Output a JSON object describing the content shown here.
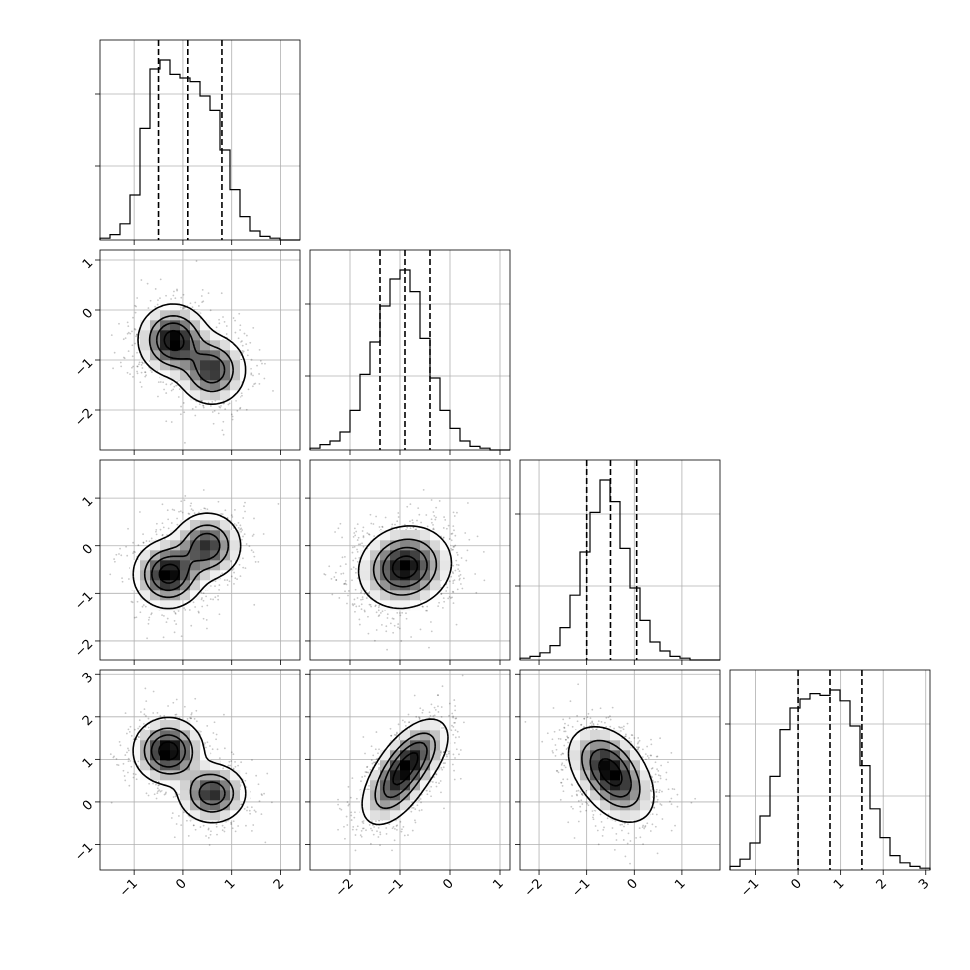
{
  "chart_data": {
    "type": "corner",
    "description_free": true,
    "parameters": 4,
    "ranges": [
      [
        -1.7,
        2.4
      ],
      [
        -2.8,
        1.2
      ],
      [
        -2.4,
        1.8
      ],
      [
        -1.6,
        3.1
      ]
    ],
    "ticks": [
      [
        -1,
        0,
        1,
        2
      ],
      [
        -2,
        -1,
        0,
        1
      ],
      [
        -2,
        -1,
        0,
        1
      ],
      [
        -1,
        0,
        1,
        2,
        3
      ]
    ],
    "tick_labels": [
      [
        "−1",
        "0",
        "1",
        "2"
      ],
      [
        "−2",
        "−1",
        "0",
        "1"
      ],
      [
        "−2",
        "−1",
        "0",
        "1"
      ],
      [
        "−1",
        "0",
        "1",
        "2",
        "3"
      ]
    ],
    "row_tick_labels": [
      null,
      [
        "−2",
        "−1",
        "0",
        "1"
      ],
      [
        "−2",
        "−1",
        "0",
        "1"
      ],
      [
        "−1",
        "0",
        "1",
        "2",
        "3"
      ]
    ],
    "quantiles": [
      [
        -0.5,
        0.1,
        0.8
      ],
      [
        -1.4,
        -0.9,
        -0.4
      ],
      [
        -1.0,
        -0.5,
        0.05
      ],
      [
        0.0,
        0.75,
        1.5
      ]
    ],
    "histograms": [
      {
        "bins": 20,
        "counts": [
          1,
          3,
          9,
          25,
          62,
          95,
          100,
          92,
          90,
          88,
          80,
          72,
          50,
          28,
          13,
          5,
          2,
          1,
          0,
          0
        ]
      },
      {
        "bins": 20,
        "counts": [
          1,
          3,
          5,
          10,
          22,
          42,
          60,
          80,
          95,
          100,
          88,
          62,
          40,
          22,
          12,
          5,
          2,
          1,
          0,
          0
        ]
      },
      {
        "bins": 20,
        "counts": [
          1,
          2,
          4,
          8,
          18,
          36,
          60,
          82,
          100,
          88,
          62,
          40,
          22,
          10,
          5,
          2,
          1,
          0,
          0,
          0
        ]
      },
      {
        "bins": 20,
        "counts": [
          2,
          6,
          15,
          30,
          52,
          78,
          90,
          95,
          98,
          97,
          100,
          94,
          80,
          58,
          34,
          18,
          8,
          4,
          2,
          1
        ]
      }
    ],
    "pairs": [
      {
        "row": 1,
        "col": 0,
        "modes": [
          {
            "mx": -0.2,
            "my": -0.6,
            "sx": 0.35,
            "sy": 0.35,
            "w": 0.55
          },
          {
            "mx": 0.6,
            "my": -1.2,
            "sx": 0.35,
            "sy": 0.35,
            "w": 0.45
          }
        ],
        "rho": 0.0
      },
      {
        "row": 2,
        "col": 0,
        "modes": [
          {
            "mx": -0.3,
            "my": -0.6,
            "sx": 0.35,
            "sy": 0.35,
            "w": 0.55
          },
          {
            "mx": 0.5,
            "my": 0.0,
            "sx": 0.35,
            "sy": 0.35,
            "w": 0.45
          }
        ],
        "rho": 0.0
      },
      {
        "row": 2,
        "col": 1,
        "modes": [
          {
            "mx": -0.9,
            "my": -0.45,
            "sx": 0.45,
            "sy": 0.42,
            "w": 1.0
          }
        ],
        "rho": 0.1
      },
      {
        "row": 3,
        "col": 0,
        "modes": [
          {
            "mx": -0.3,
            "my": 1.2,
            "sx": 0.35,
            "sy": 0.38,
            "w": 0.55
          },
          {
            "mx": 0.6,
            "my": 0.2,
            "sx": 0.35,
            "sy": 0.35,
            "w": 0.45
          }
        ],
        "rho": 0.0
      },
      {
        "row": 3,
        "col": 1,
        "modes": [
          {
            "mx": -1.1,
            "my": 0.4,
            "sx": 0.35,
            "sy": 0.5,
            "w": 0.5
          },
          {
            "mx": -0.7,
            "my": 1.1,
            "sx": 0.35,
            "sy": 0.45,
            "w": 0.5
          }
        ],
        "rho": 0.5
      },
      {
        "row": 3,
        "col": 2,
        "modes": [
          {
            "mx": -0.6,
            "my": 0.9,
            "sx": 0.4,
            "sy": 0.45,
            "w": 0.6
          },
          {
            "mx": -0.3,
            "my": 0.3,
            "sx": 0.4,
            "sy": 0.45,
            "w": 0.4
          }
        ],
        "rho": -0.3
      }
    ],
    "grid": true
  }
}
